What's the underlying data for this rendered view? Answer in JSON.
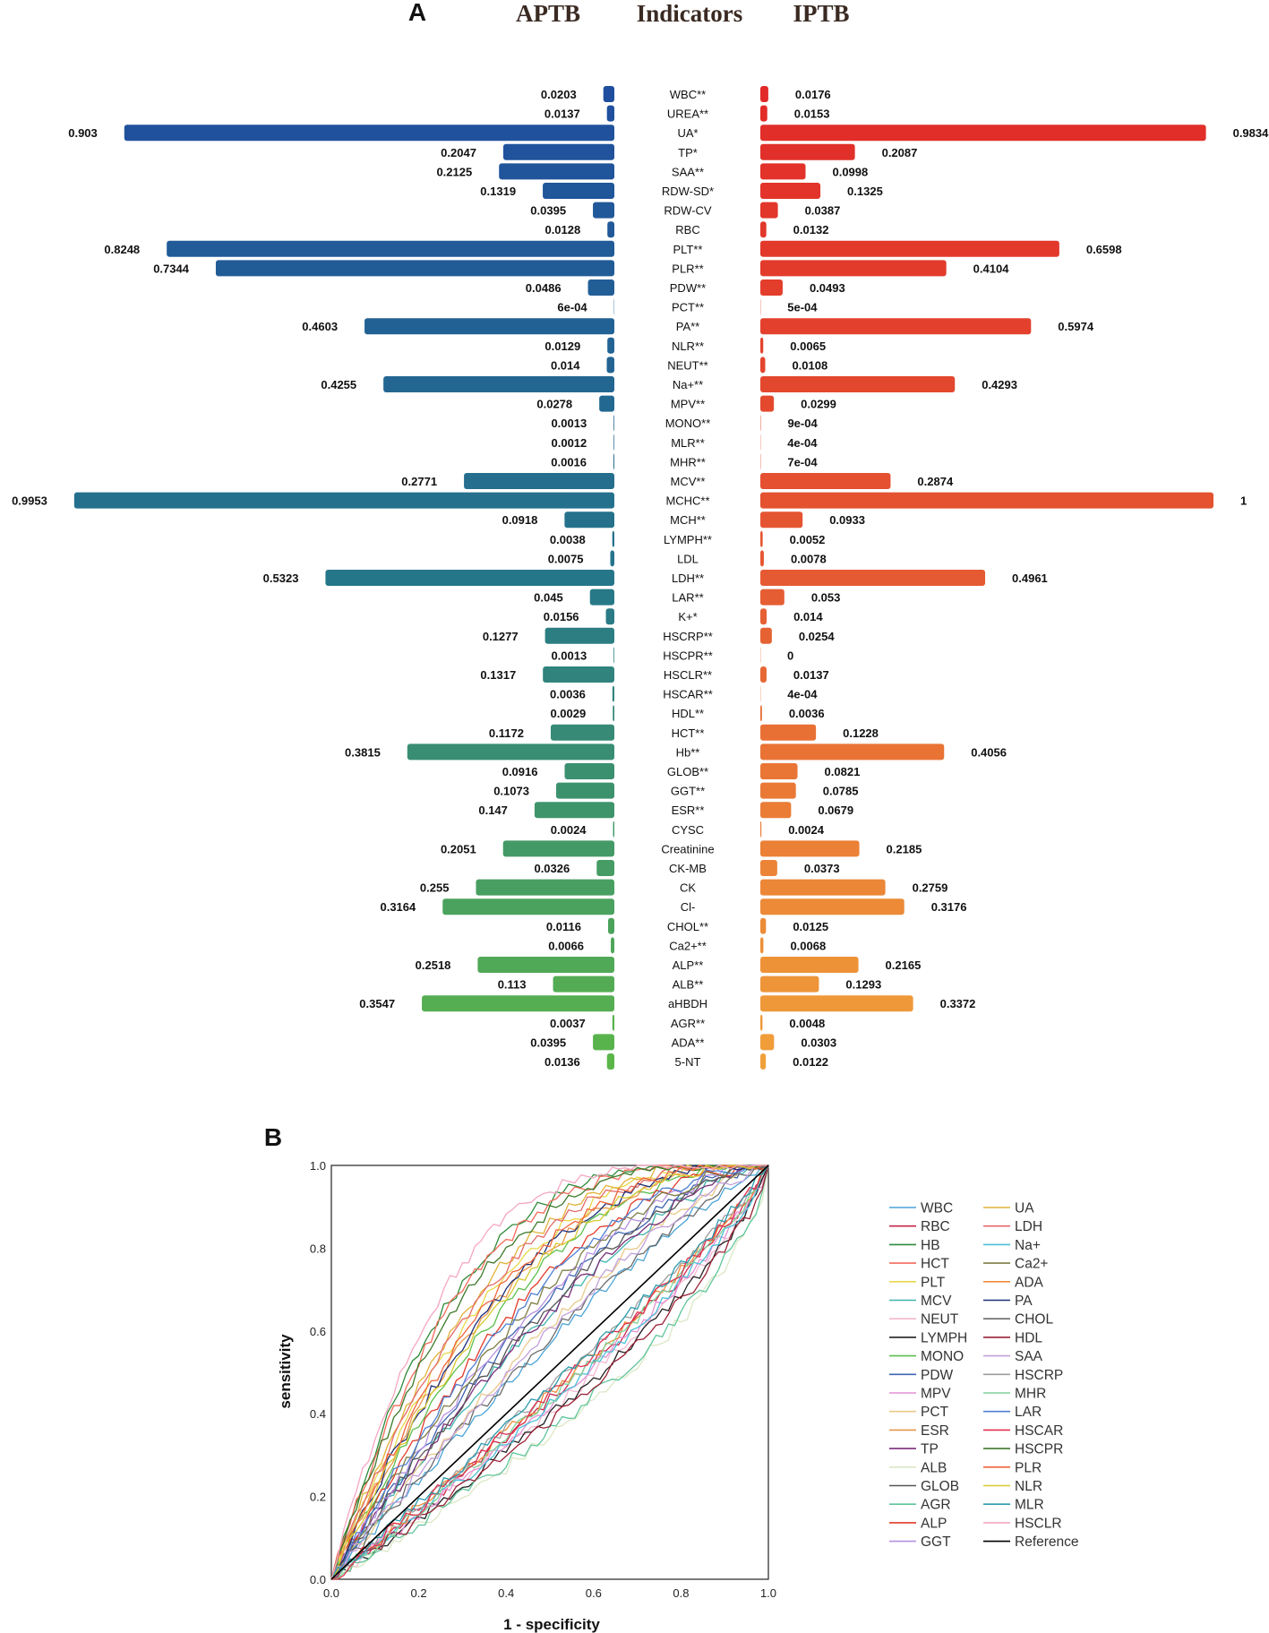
{
  "chart_data": [
    {
      "type": "bar",
      "panel_label": "A",
      "title_left": "APTB",
      "title_center": "Indicators",
      "title_right": "IPTB",
      "indicators": [
        "WBC**",
        "UREA**",
        "UA*",
        "TP*",
        "SAA**",
        "RDW-SD*",
        "RDW-CV",
        "RBC",
        "PLT**",
        "PLR**",
        "PDW**",
        "PCT**",
        "PA**",
        "NLR**",
        "NEUT**",
        "Na+**",
        "MPV**",
        "MONO**",
        "MLR**",
        "MHR**",
        "MCV**",
        "MCHC**",
        "MCH**",
        "LYMPH**",
        "LDL",
        "LDH**",
        "LAR**",
        "K+*",
        "HSCRP**",
        "HSCPR**",
        "HSCLR**",
        "HSCAR**",
        "HDL**",
        "HCT**",
        "Hb**",
        "GLOB**",
        "GGT**",
        "ESR**",
        "CYSC",
        "Creatinine",
        "CK-MB",
        "CK",
        "Cl-",
        "CHOL**",
        "Ca2+**",
        "ALP**",
        "ALB**",
        "aHBDH",
        "AGR**",
        "ADA**",
        "5-NT"
      ],
      "series": [
        {
          "name": "APTB",
          "values": [
            0.0203,
            0.0137,
            0.903,
            0.2047,
            0.2125,
            0.1319,
            0.0395,
            0.0128,
            0.8248,
            0.7344,
            0.0486,
            0.0006,
            0.4603,
            0.0129,
            0.014,
            0.4255,
            0.0278,
            0.0013,
            0.0012,
            0.0016,
            0.2771,
            0.9953,
            0.0918,
            0.0038,
            0.0075,
            0.5323,
            0.045,
            0.0156,
            0.1277,
            0.0013,
            0.1317,
            0.0036,
            0.0029,
            0.1172,
            0.3815,
            0.0916,
            0.1073,
            0.147,
            0.0024,
            0.2051,
            0.0326,
            0.255,
            0.3164,
            0.0116,
            0.0066,
            0.2518,
            0.113,
            0.3547,
            0.0037,
            0.0395,
            0.0136
          ],
          "labels": [
            "0.0203",
            "0.0137",
            "0.903",
            "0.2047",
            "0.2125",
            "0.1319",
            "0.0395",
            "0.0128",
            "0.8248",
            "0.7344",
            "0.0486",
            "6e-04",
            "0.4603",
            "0.0129",
            "0.014",
            "0.4255",
            "0.0278",
            "0.0013",
            "0.0012",
            "0.0016",
            "0.2771",
            "0.9953",
            "0.0918",
            "0.0038",
            "0.0075",
            "0.5323",
            "0.045",
            "0.0156",
            "0.1277",
            "0.0013",
            "0.1317",
            "0.0036",
            "0.0029",
            "0.1172",
            "0.3815",
            "0.0916",
            "0.1073",
            "0.147",
            "0.0024",
            "0.2051",
            "0.0326",
            "0.255",
            "0.3164",
            "0.0116",
            "0.0066",
            "0.2518",
            "0.113",
            "0.3547",
            "0.0037",
            "0.0395",
            "0.0136"
          ]
        },
        {
          "name": "IPTB",
          "values": [
            0.0176,
            0.0153,
            0.9834,
            0.2087,
            0.0998,
            0.1325,
            0.0387,
            0.0132,
            0.6598,
            0.4104,
            0.0493,
            0.0005,
            0.5974,
            0.0065,
            0.0108,
            0.4293,
            0.0299,
            0.0009,
            0.0004,
            0.0007,
            0.2874,
            1,
            0.0933,
            0.0052,
            0.0078,
            0.4961,
            0.053,
            0.014,
            0.0254,
            0,
            0.0137,
            0.0004,
            0.0036,
            0.1228,
            0.4056,
            0.0821,
            0.0785,
            0.0679,
            0.0024,
            0.2185,
            0.0373,
            0.2759,
            0.3176,
            0.0125,
            0.0068,
            0.2165,
            0.1293,
            0.3372,
            0.0048,
            0.0303,
            0.0122
          ],
          "labels": [
            "0.0176",
            "0.0153",
            "0.9834",
            "0.2087",
            "0.0998",
            "0.1325",
            "0.0387",
            "0.0132",
            "0.6598",
            "0.4104",
            "0.0493",
            "5e-04",
            "0.5974",
            "0.0065",
            "0.0108",
            "0.4293",
            "0.0299",
            "9e-04",
            "4e-04",
            "7e-04",
            "0.2874",
            "1",
            "0.0933",
            "0.0052",
            "0.0078",
            "0.4961",
            "0.053",
            "0.014",
            "0.0254",
            "0",
            "0.0137",
            "4e-04",
            "0.0036",
            "0.1228",
            "0.4056",
            "0.0821",
            "0.0785",
            "0.0679",
            "0.0024",
            "0.2185",
            "0.0373",
            "0.2759",
            "0.3176",
            "0.0125",
            "0.0068",
            "0.2165",
            "0.1293",
            "0.3372",
            "0.0048",
            "0.0303",
            "0.0122"
          ]
        }
      ],
      "xlim": [
        0,
        1
      ],
      "colors": {
        "aptb_start": "#1f4e9e",
        "aptb_mid": "#26768a",
        "aptb_end": "#5bb64a",
        "iptb_start": "#e12a28",
        "iptb_mid": "#e55a32",
        "iptb_end": "#f0a03a"
      }
    },
    {
      "type": "line",
      "panel_label": "B",
      "xlabel": "1 - specificity",
      "ylabel": "sensitivity",
      "xlim": [
        0,
        1
      ],
      "ylim": [
        0,
        1
      ],
      "xticks": [
        "0.0",
        "0.2",
        "0.4",
        "0.6",
        "0.8",
        "1.0"
      ],
      "yticks": [
        "0.0",
        "0.2",
        "0.4",
        "0.6",
        "0.8",
        "1.0"
      ],
      "series": [
        {
          "name": "WBC",
          "color": "#4aa3d6",
          "auc": 0.55
        },
        {
          "name": "RBC",
          "color": "#c9264b",
          "auc": 0.45
        },
        {
          "name": "HB",
          "color": "#2e8b3a",
          "auc": 0.78
        },
        {
          "name": "HCT",
          "color": "#f26b5b",
          "auc": 0.77
        },
        {
          "name": "PLT",
          "color": "#e8d84a",
          "auc": 0.72
        },
        {
          "name": "MCV",
          "color": "#3fb5ad",
          "auc": 0.6
        },
        {
          "name": "NEUT",
          "color": "#f3b8d0",
          "auc": 0.43
        },
        {
          "name": "LYMPH",
          "color": "#222222",
          "auc": 0.42
        },
        {
          "name": "MONO",
          "color": "#5cbf4e",
          "auc": 0.68
        },
        {
          "name": "PDW",
          "color": "#3e64b0",
          "auc": 0.62
        },
        {
          "name": "MPV",
          "color": "#e58fd3",
          "auc": 0.44
        },
        {
          "name": "PCT",
          "color": "#e9c98a",
          "auc": 0.58
        },
        {
          "name": "ESR",
          "color": "#e8964a",
          "auc": 0.7
        },
        {
          "name": "TP",
          "color": "#7a2d7a",
          "auc": 0.6
        },
        {
          "name": "ALB",
          "color": "#dbe8c4",
          "auc": 0.38
        },
        {
          "name": "GLOB",
          "color": "#555555",
          "auc": 0.61
        },
        {
          "name": "AGR",
          "color": "#5fc49a",
          "auc": 0.39
        },
        {
          "name": "ALP",
          "color": "#e23a2a",
          "auc": 0.66
        },
        {
          "name": "GGT",
          "color": "#b590e0",
          "auc": 0.63
        },
        {
          "name": "UA",
          "color": "#e0b23a",
          "auc": 0.74
        },
        {
          "name": "LDH",
          "color": "#e46a6a",
          "auc": 0.73
        },
        {
          "name": "Na+",
          "color": "#48c0d8",
          "auc": 0.44
        },
        {
          "name": "Ca2+",
          "color": "#7d7d45",
          "auc": 0.64
        },
        {
          "name": "ADA",
          "color": "#ef8c3a",
          "auc": 0.46
        },
        {
          "name": "PA",
          "color": "#1e2f7a",
          "auc": 0.7
        },
        {
          "name": "CHOL",
          "color": "#6b6b6b",
          "auc": 0.56
        },
        {
          "name": "HDL",
          "color": "#9a2236",
          "auc": 0.41
        },
        {
          "name": "SAA",
          "color": "#c3a0dc",
          "auc": 0.57
        },
        {
          "name": "HSCRP",
          "color": "#9e9e9e",
          "auc": 0.47
        },
        {
          "name": "MHR",
          "color": "#7fd49a",
          "auc": 0.45
        },
        {
          "name": "LAR",
          "color": "#4f7fd1",
          "auc": 0.65
        },
        {
          "name": "HSCAR",
          "color": "#e0304e",
          "auc": 0.46
        },
        {
          "name": "HSCPR",
          "color": "#3c7a2a",
          "auc": 0.76
        },
        {
          "name": "PLR",
          "color": "#f0643a",
          "auc": 0.71
        },
        {
          "name": "NLR",
          "color": "#d8c830",
          "auc": 0.69
        },
        {
          "name": "MLR",
          "color": "#2c9cae",
          "auc": 0.47
        },
        {
          "name": "HSCLR",
          "color": "#f5a6c2",
          "auc": 0.8
        },
        {
          "name": "Reference",
          "color": "#000000",
          "auc": 0.5
        }
      ]
    }
  ]
}
